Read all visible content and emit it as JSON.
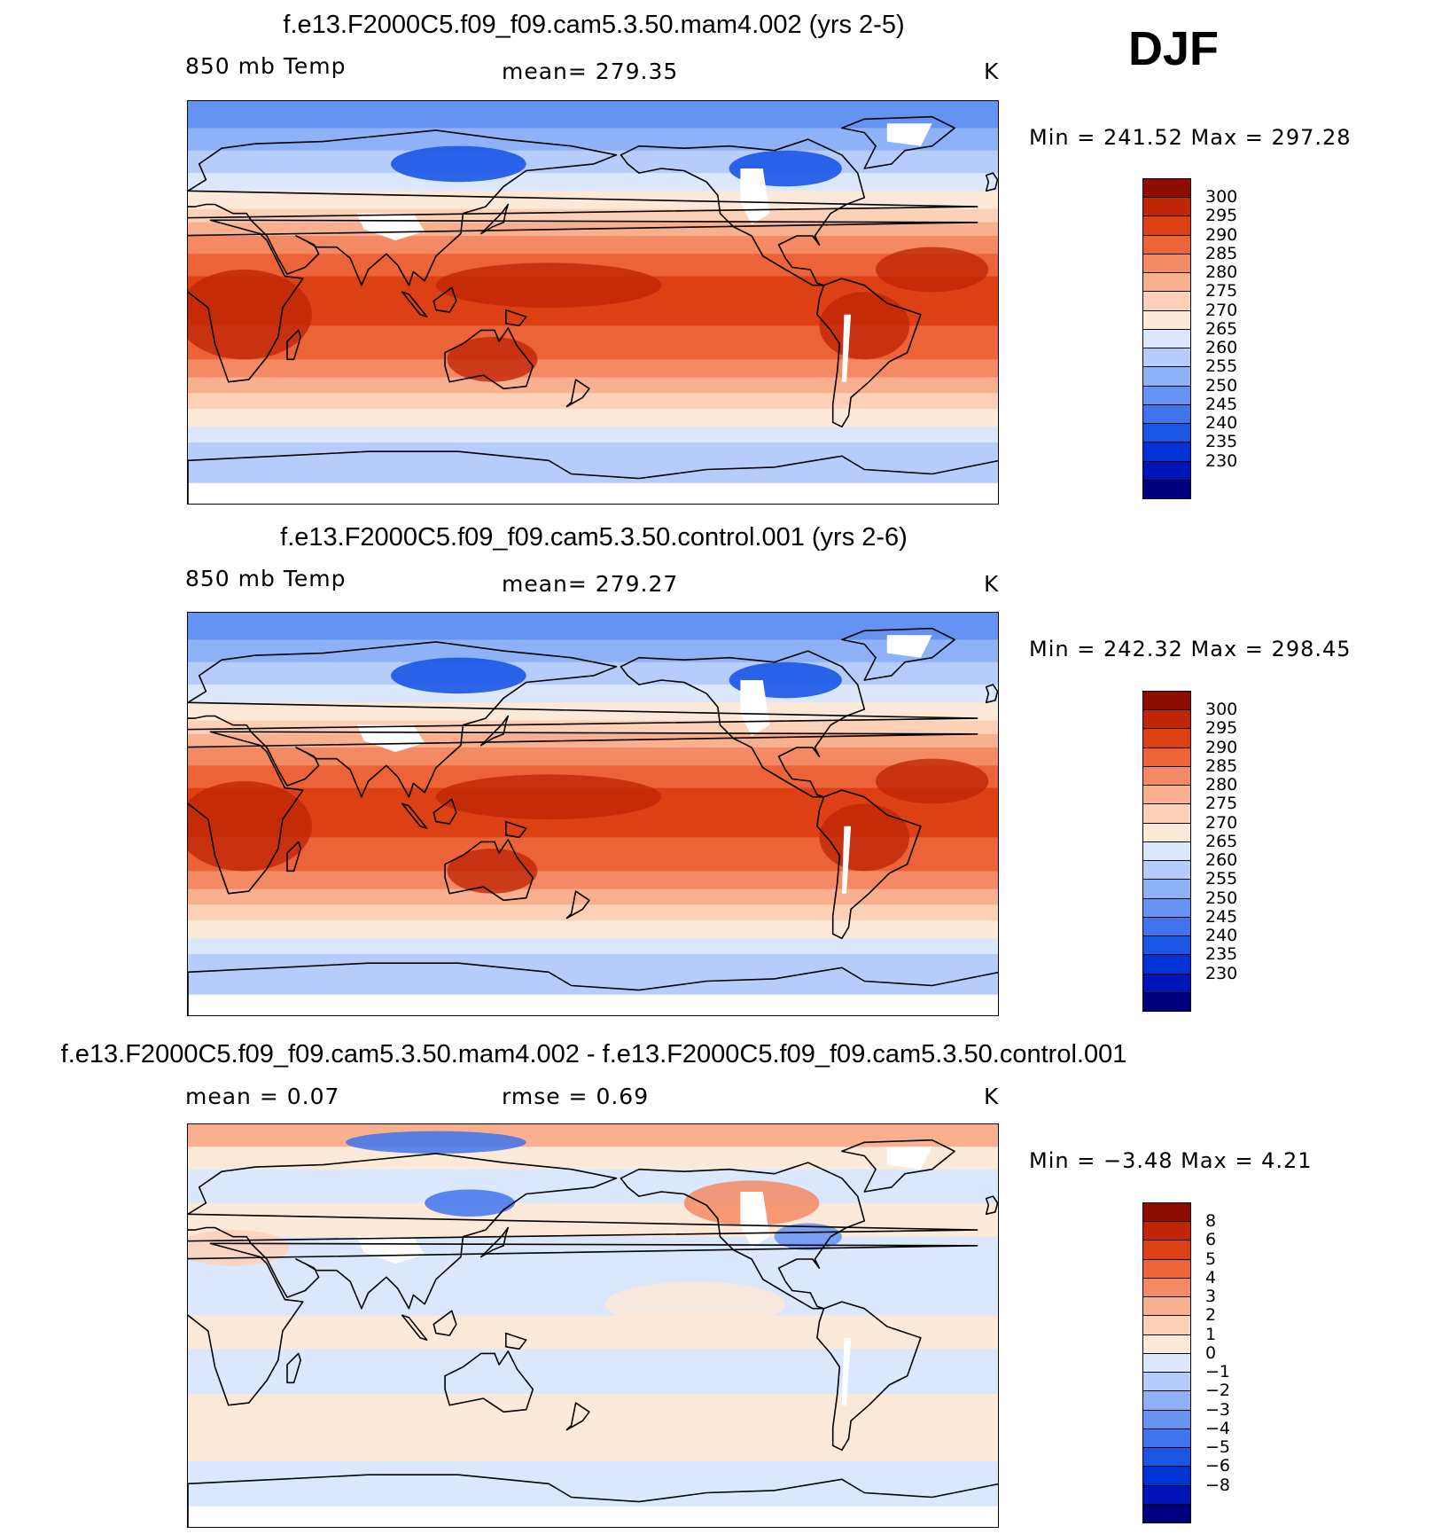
{
  "season": "DJF",
  "colors": {
    "abs_levels": [
      "#00007f",
      "#0015b9",
      "#0033d6",
      "#1a55e6",
      "#3f74ee",
      "#6493f4",
      "#8eb1f8",
      "#b6cdfb",
      "#dae7fd",
      "#fde9d8",
      "#fcd1b7",
      "#f9b08e",
      "#f48a63",
      "#ec6337",
      "#dd4012",
      "#c02506",
      "#8f0d00"
    ],
    "diff_levels": [
      "#00007f",
      "#0015b9",
      "#0033d6",
      "#1a55e6",
      "#3f74ee",
      "#6493f4",
      "#8eb1f8",
      "#b6cdfb",
      "#dae7fd",
      "#fde9d8",
      "#fcd1b7",
      "#f9b08e",
      "#f48a63",
      "#ec6337",
      "#dd4012",
      "#c02506",
      "#8f0d00"
    ],
    "land_missing": "#ffffff",
    "coast": "#000000"
  },
  "panels": [
    {
      "title": "f.e13.F2000C5.f09_f09.cam5.3.50.mam4.002 (yrs 2-5)",
      "left_label": "850 mb Temp",
      "center_label": "mean=  279.35",
      "units": "K",
      "min_max": "Min  =  241.52  Max  =  297.28",
      "kind": "abs",
      "colorbar_labels": [
        "300",
        "295",
        "290",
        "285",
        "280",
        "275",
        "270",
        "265",
        "260",
        "255",
        "250",
        "245",
        "240",
        "235",
        "230"
      ]
    },
    {
      "title": "f.e13.F2000C5.f09_f09.cam5.3.50.control.001 (yrs 2-6)",
      "left_label": "850 mb Temp",
      "center_label": "mean=  279.27",
      "units": "K",
      "min_max": "Min  =  242.32  Max  =  298.45",
      "kind": "abs",
      "colorbar_labels": [
        "300",
        "295",
        "290",
        "285",
        "280",
        "275",
        "270",
        "265",
        "260",
        "255",
        "250",
        "245",
        "240",
        "235",
        "230"
      ]
    },
    {
      "title": "f.e13.F2000C5.f09_f09.cam5.3.50.mam4.002 - f.e13.F2000C5.f09_f09.cam5.3.50.control.001",
      "left_label": "mean  =     0.07",
      "center_label": "rmse  =     0.69",
      "units": "K",
      "min_max": "Min  =    −3.48  Max  =     4.21",
      "kind": "diff",
      "colorbar_labels": [
        "8",
        "6",
        "5",
        "4",
        "3",
        "2",
        "1",
        "0",
        "−1",
        "−2",
        "−3",
        "−4",
        "−5",
        "−6",
        "−8"
      ]
    }
  ]
}
